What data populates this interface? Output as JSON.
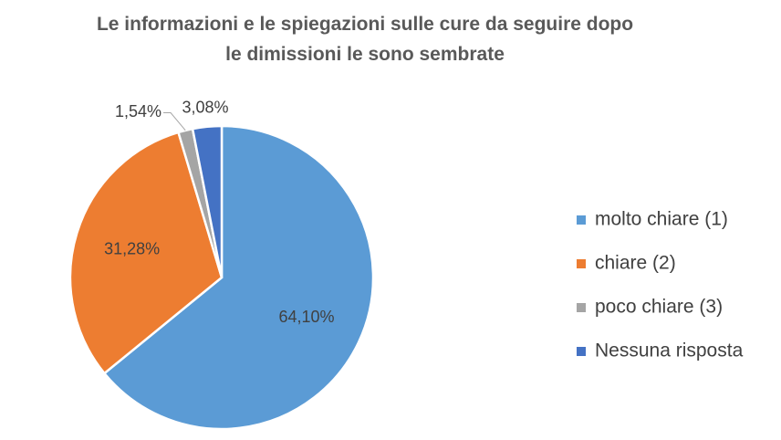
{
  "chart_data": {
    "type": "pie",
    "title": "Le informazioni e le spiegazioni sulle cure da seguire dopo le dimissioni le sono sembrate",
    "categories": [
      "molto chiare (1)",
      "chiare (2)",
      "poco chiare (3)",
      "Nessuna risposta"
    ],
    "values": [
      64.1,
      31.28,
      1.54,
      3.08
    ],
    "value_labels": [
      "64,10%",
      "31,28%",
      "1,54%",
      "3,08%"
    ],
    "colors": [
      "#5b9bd5",
      "#ed7d31",
      "#a5a5a5",
      "#4472c4"
    ],
    "legend": "right"
  }
}
